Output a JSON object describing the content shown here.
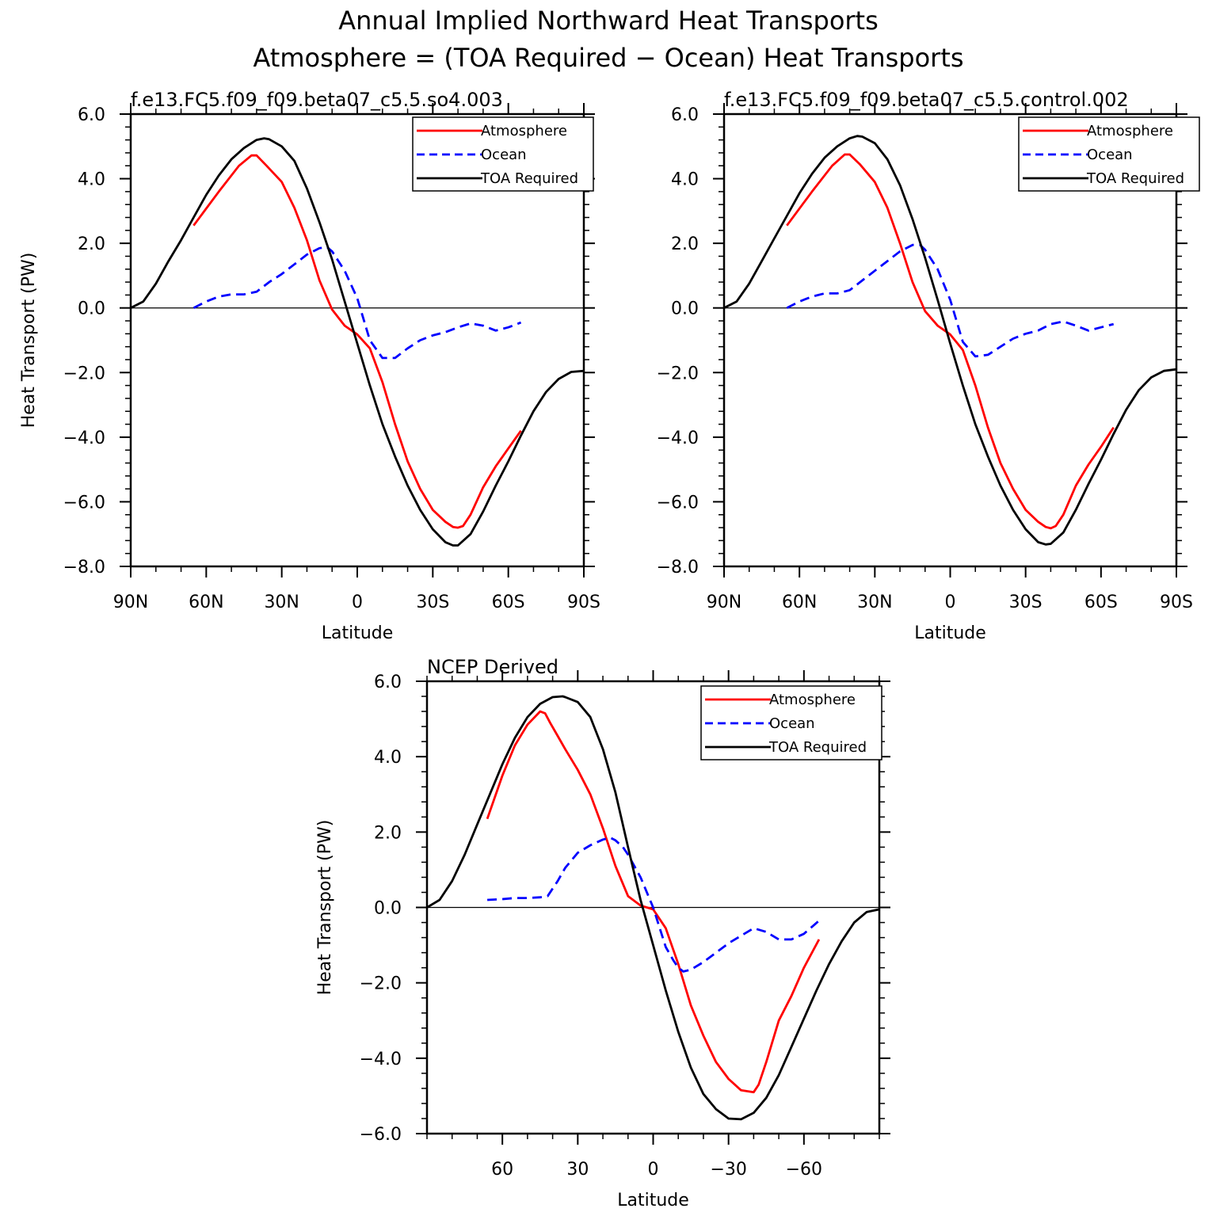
{
  "figure": {
    "title_line1": "Annual Implied Northward Heat Transports",
    "title_line2": "Atmosphere = (TOA Required − Ocean) Heat Transports"
  },
  "chart_data": [
    {
      "type": "line",
      "title": "f.e13.FC5.f09_f09.beta07_c5.5.so4.003",
      "xlabel": "Latitude",
      "ylabel": "Heat Transport (PW)",
      "xlim": [
        90,
        -90
      ],
      "ylim": [
        -8,
        6
      ],
      "x_ticks": [
        90,
        60,
        30,
        0,
        -30,
        -60,
        -90
      ],
      "x_tick_labels": [
        "90N",
        "60N",
        "30N",
        "0",
        "30S",
        "60S",
        "90S"
      ],
      "y_ticks": [
        6,
        4,
        2,
        0,
        -2,
        -4,
        -6,
        -8
      ],
      "y_tick_labels": [
        "6.0",
        "4.0",
        "2.0",
        "0.0",
        "−2.0",
        "−4.0",
        "−6.0",
        "−8.0"
      ],
      "legend_position": "top-right",
      "series": [
        {
          "name": "Atmosphere",
          "color": "#ff0000",
          "dash": "solid",
          "x": [
            65,
            55,
            47,
            42,
            40,
            36,
            30,
            25,
            20,
            15,
            10,
            5,
            0,
            -5,
            -10,
            -15,
            -20,
            -25,
            -30,
            -35,
            -38,
            -40,
            -42,
            -45,
            -50,
            -55,
            -60,
            -65
          ],
          "y": [
            2.55,
            3.6,
            4.4,
            4.72,
            4.72,
            4.4,
            3.9,
            3.1,
            2.1,
            0.85,
            -0.05,
            -0.55,
            -0.82,
            -1.25,
            -2.3,
            -3.6,
            -4.75,
            -5.6,
            -6.25,
            -6.62,
            -6.78,
            -6.8,
            -6.75,
            -6.4,
            -5.55,
            -4.9,
            -4.35,
            -3.8
          ]
        },
        {
          "name": "Ocean",
          "color": "#0000ff",
          "dash": "dashed",
          "x": [
            65,
            60,
            55,
            50,
            45,
            40,
            35,
            30,
            25,
            20,
            15,
            12,
            10,
            5,
            0,
            -5,
            -10,
            -15,
            -20,
            -25,
            -30,
            -35,
            -40,
            -45,
            -50,
            -55,
            -60,
            -65
          ],
          "y": [
            0.0,
            0.2,
            0.35,
            0.42,
            0.42,
            0.5,
            0.8,
            1.05,
            1.35,
            1.65,
            1.85,
            1.88,
            1.75,
            1.15,
            0.3,
            -1.0,
            -1.55,
            -1.55,
            -1.25,
            -1.0,
            -0.85,
            -0.75,
            -0.6,
            -0.48,
            -0.55,
            -0.7,
            -0.6,
            -0.45
          ]
        },
        {
          "name": "TOA Required",
          "color": "#000000",
          "dash": "solid",
          "x": [
            90,
            85,
            80,
            75,
            70,
            65,
            60,
            55,
            50,
            45,
            40,
            37,
            35,
            30,
            25,
            20,
            15,
            10,
            5,
            0,
            -5,
            -10,
            -15,
            -20,
            -25,
            -30,
            -35,
            -38,
            -40,
            -45,
            -50,
            -55,
            -60,
            -65,
            -70,
            -75,
            -80,
            -85,
            -90
          ],
          "y": [
            0.0,
            0.2,
            0.75,
            1.45,
            2.1,
            2.8,
            3.5,
            4.1,
            4.6,
            4.95,
            5.2,
            5.25,
            5.22,
            5.0,
            4.55,
            3.7,
            2.65,
            1.5,
            0.2,
            -1.1,
            -2.4,
            -3.6,
            -4.6,
            -5.5,
            -6.25,
            -6.85,
            -7.25,
            -7.35,
            -7.35,
            -7.0,
            -6.3,
            -5.5,
            -4.75,
            -3.95,
            -3.2,
            -2.6,
            -2.2,
            -1.98,
            -1.95
          ]
        }
      ]
    },
    {
      "type": "line",
      "title": "f.e13.FC5.f09_f09.beta07_c5.5.control.002",
      "xlabel": "Latitude",
      "ylabel": "",
      "xlim": [
        90,
        -90
      ],
      "ylim": [
        -8,
        6
      ],
      "x_ticks": [
        90,
        60,
        30,
        0,
        -30,
        -60,
        -90
      ],
      "x_tick_labels": [
        "90N",
        "60N",
        "30N",
        "0",
        "30S",
        "60S",
        "90S"
      ],
      "y_ticks": [
        6,
        4,
        2,
        0,
        -2,
        -4,
        -6,
        -8
      ],
      "y_tick_labels": [
        "6.0",
        "4.0",
        "2.0",
        "0.0",
        "−2.0",
        "−4.0",
        "−6.0",
        "−8.0"
      ],
      "legend_position": "top-right",
      "series": [
        {
          "name": "Atmosphere",
          "color": "#ff0000",
          "dash": "solid",
          "x": [
            65,
            55,
            47,
            42,
            40,
            36,
            30,
            25,
            20,
            15,
            10,
            5,
            0,
            -5,
            -10,
            -15,
            -20,
            -25,
            -30,
            -35,
            -38,
            -40,
            -42,
            -45,
            -50,
            -55,
            -60,
            -65
          ],
          "y": [
            2.55,
            3.6,
            4.4,
            4.75,
            4.75,
            4.45,
            3.9,
            3.1,
            2.0,
            0.8,
            -0.1,
            -0.55,
            -0.82,
            -1.3,
            -2.4,
            -3.7,
            -4.8,
            -5.6,
            -6.25,
            -6.62,
            -6.78,
            -6.82,
            -6.75,
            -6.4,
            -5.5,
            -4.85,
            -4.3,
            -3.7
          ]
        },
        {
          "name": "Ocean",
          "color": "#0000ff",
          "dash": "dashed",
          "x": [
            65,
            60,
            55,
            50,
            45,
            40,
            35,
            30,
            25,
            20,
            15,
            12,
            10,
            5,
            0,
            -5,
            -10,
            -15,
            -20,
            -25,
            -30,
            -35,
            -40,
            -45,
            -50,
            -55,
            -60,
            -65
          ],
          "y": [
            0.0,
            0.2,
            0.35,
            0.45,
            0.45,
            0.55,
            0.85,
            1.15,
            1.45,
            1.75,
            1.95,
            1.95,
            1.8,
            1.2,
            0.25,
            -1.05,
            -1.5,
            -1.45,
            -1.2,
            -0.95,
            -0.8,
            -0.7,
            -0.5,
            -0.42,
            -0.55,
            -0.7,
            -0.6,
            -0.5
          ]
        },
        {
          "name": "TOA Required",
          "color": "#000000",
          "dash": "solid",
          "x": [
            90,
            85,
            80,
            75,
            70,
            65,
            60,
            55,
            50,
            45,
            40,
            37,
            35,
            30,
            25,
            20,
            15,
            10,
            5,
            0,
            -5,
            -10,
            -15,
            -20,
            -25,
            -30,
            -35,
            -38,
            -40,
            -45,
            -50,
            -55,
            -60,
            -65,
            -70,
            -75,
            -80,
            -85,
            -90
          ],
          "y": [
            0.0,
            0.2,
            0.75,
            1.45,
            2.15,
            2.85,
            3.55,
            4.15,
            4.65,
            5.0,
            5.25,
            5.32,
            5.3,
            5.1,
            4.6,
            3.8,
            2.75,
            1.55,
            0.25,
            -1.1,
            -2.4,
            -3.6,
            -4.6,
            -5.5,
            -6.25,
            -6.85,
            -7.25,
            -7.32,
            -7.3,
            -6.95,
            -6.25,
            -5.45,
            -4.7,
            -3.9,
            -3.15,
            -2.55,
            -2.15,
            -1.95,
            -1.9
          ]
        }
      ]
    },
    {
      "type": "line",
      "title": "NCEP Derived",
      "xlabel": "Latitude",
      "ylabel": "Heat Transport (PW)",
      "xlim": [
        90,
        -90
      ],
      "ylim": [
        -6,
        6
      ],
      "x_ticks": [
        60,
        30,
        0,
        -30,
        -60
      ],
      "x_tick_labels": [
        "60",
        "30",
        "0",
        "−30",
        "−60"
      ],
      "y_ticks": [
        6,
        4,
        2,
        0,
        -2,
        -4,
        -6
      ],
      "y_tick_labels": [
        "6.0",
        "4.0",
        "2.0",
        "0.0",
        "−2.0",
        "−4.0",
        "−6.0"
      ],
      "legend_position": "top-right",
      "series": [
        {
          "name": "Atmosphere",
          "color": "#ff0000",
          "dash": "solid",
          "x": [
            66,
            60,
            55,
            50,
            45,
            43,
            41,
            38,
            35,
            30,
            25,
            20,
            15,
            10,
            5,
            0,
            -5,
            -10,
            -15,
            -20,
            -25,
            -30,
            -35,
            -40,
            -42,
            -45,
            -50,
            -55,
            -60,
            -66
          ],
          "y": [
            2.35,
            3.5,
            4.3,
            4.85,
            5.2,
            5.15,
            4.9,
            4.55,
            4.2,
            3.65,
            3.0,
            2.1,
            1.1,
            0.3,
            0.05,
            -0.05,
            -0.55,
            -1.5,
            -2.6,
            -3.4,
            -4.1,
            -4.55,
            -4.85,
            -4.9,
            -4.7,
            -4.1,
            -3.0,
            -2.35,
            -1.6,
            -0.85
          ]
        },
        {
          "name": "Ocean",
          "color": "#0000ff",
          "dash": "dashed",
          "x": [
            66,
            60,
            55,
            50,
            45,
            42,
            38,
            35,
            30,
            25,
            20,
            17,
            15,
            12,
            10,
            5,
            0,
            -5,
            -8,
            -10,
            -12,
            -15,
            -20,
            -25,
            -30,
            -35,
            -40,
            -45,
            -50,
            -55,
            -60,
            -66
          ],
          "y": [
            0.2,
            0.22,
            0.25,
            0.25,
            0.27,
            0.3,
            0.7,
            1.05,
            1.45,
            1.65,
            1.8,
            1.85,
            1.78,
            1.6,
            1.4,
            0.8,
            0.0,
            -1.05,
            -1.4,
            -1.6,
            -1.7,
            -1.65,
            -1.45,
            -1.2,
            -0.95,
            -0.75,
            -0.55,
            -0.65,
            -0.85,
            -0.85,
            -0.7,
            -0.35
          ]
        },
        {
          "name": "TOA Required",
          "color": "#000000",
          "dash": "solid",
          "x": [
            90,
            85,
            80,
            75,
            70,
            65,
            60,
            55,
            50,
            45,
            40,
            36,
            35,
            30,
            25,
            20,
            15,
            10,
            5,
            0,
            -5,
            -10,
            -15,
            -20,
            -25,
            -30,
            -35,
            -40,
            -45,
            -50,
            -55,
            -60,
            -65,
            -70,
            -75,
            -80,
            -85,
            -90
          ],
          "y": [
            0.0,
            0.2,
            0.7,
            1.4,
            2.2,
            3.0,
            3.8,
            4.5,
            5.05,
            5.4,
            5.58,
            5.6,
            5.58,
            5.45,
            5.05,
            4.2,
            3.05,
            1.6,
            0.2,
            -1.0,
            -2.2,
            -3.3,
            -4.25,
            -4.95,
            -5.35,
            -5.6,
            -5.62,
            -5.45,
            -5.05,
            -4.45,
            -3.7,
            -2.95,
            -2.2,
            -1.5,
            -0.9,
            -0.4,
            -0.12,
            -0.05
          ]
        }
      ]
    }
  ]
}
